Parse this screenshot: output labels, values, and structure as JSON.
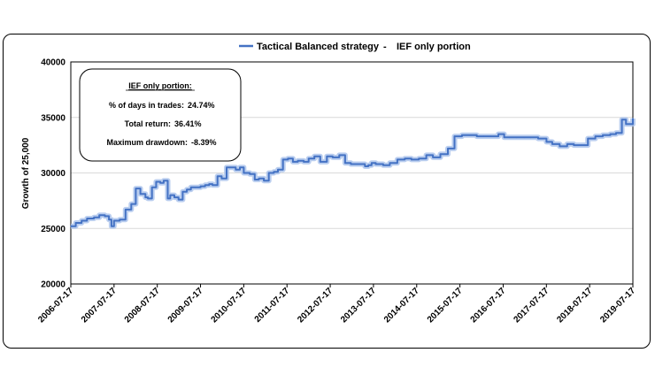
{
  "chart_data": {
    "type": "line",
    "legend": {
      "series_label": "Tactical Balanced strategy",
      "separator": "-",
      "extra_label": "IEF only portion",
      "placement": "top-center"
    },
    "ylabel": "Growth of 25,000",
    "ylim": [
      20000,
      40000
    ],
    "yticks": [
      20000,
      25000,
      30000,
      35000,
      40000
    ],
    "ytick_labels": [
      "20000",
      "25000",
      "30000",
      "35000",
      "40000"
    ],
    "xlim": [
      "2006-07-17",
      "2019-07-17"
    ],
    "xtick_labels": [
      "2006-07-17",
      "2007-07-17",
      "2008-07-17",
      "2009-07-17",
      "2010-07-17",
      "2011-07-17",
      "2012-07-17",
      "2013-07-17",
      "2014-07-17",
      "2015-07-17",
      "2016-07-17",
      "2017-07-17",
      "2018-07-17",
      "2019-07-17"
    ],
    "grid": "horizontal",
    "line_color": "#4472c4",
    "series": [
      {
        "name": "Tactical Balanced strategy",
        "x": [
          "2006-07-17",
          "2006-08-28",
          "2006-10-16",
          "2006-12-01",
          "2007-01-29",
          "2007-03-15",
          "2007-05-01",
          "2007-06-04",
          "2007-06-25",
          "2007-07-17",
          "2007-09-03",
          "2007-10-22",
          "2007-12-10",
          "2008-01-17",
          "2008-02-25",
          "2008-04-07",
          "2008-04-28",
          "2008-06-02",
          "2008-07-07",
          "2008-08-11",
          "2008-09-08",
          "2008-10-13",
          "2008-11-03",
          "2008-12-08",
          "2009-01-12",
          "2009-02-16",
          "2009-03-23",
          "2009-04-27",
          "2009-06-01",
          "2009-07-17",
          "2009-08-24",
          "2009-09-28",
          "2009-10-26",
          "2009-12-07",
          "2010-01-11",
          "2010-02-22",
          "2010-03-29",
          "2010-05-10",
          "2010-06-14",
          "2010-07-17",
          "2010-09-06",
          "2010-10-18",
          "2010-11-22",
          "2011-01-03",
          "2011-02-14",
          "2011-03-28",
          "2011-05-02",
          "2011-06-13",
          "2011-07-25",
          "2011-09-05",
          "2011-10-17",
          "2011-12-05",
          "2012-01-16",
          "2012-03-05",
          "2012-04-23",
          "2012-06-18",
          "2012-08-06",
          "2012-10-01",
          "2012-11-19",
          "2013-01-07",
          "2013-03-04",
          "2013-05-06",
          "2013-06-03",
          "2013-07-01",
          "2013-08-05",
          "2013-10-07",
          "2013-12-02",
          "2014-02-03",
          "2014-04-07",
          "2014-06-02",
          "2014-08-04",
          "2014-10-06",
          "2014-12-01",
          "2015-02-02",
          "2015-04-06",
          "2015-06-01",
          "2015-08-03",
          "2015-10-05",
          "2015-12-07",
          "2016-02-01",
          "2016-04-04",
          "2016-06-06",
          "2016-07-25",
          "2016-09-05",
          "2016-11-07",
          "2017-01-09",
          "2017-03-06",
          "2017-05-08",
          "2017-07-17",
          "2017-09-04",
          "2017-11-06",
          "2018-01-08",
          "2018-03-05",
          "2018-05-07",
          "2018-07-02",
          "2018-09-03",
          "2018-11-05",
          "2019-01-07",
          "2019-02-25",
          "2019-04-15",
          "2019-05-20",
          "2019-06-24",
          "2019-07-17"
        ],
        "y": [
          25200,
          25500,
          25700,
          25900,
          26000,
          26200,
          26100,
          25800,
          25200,
          25700,
          25800,
          26700,
          27200,
          28600,
          28100,
          27800,
          27700,
          28700,
          29200,
          29100,
          29300,
          27700,
          28000,
          27800,
          27600,
          28300,
          28500,
          28700,
          28700,
          28800,
          28900,
          29000,
          28900,
          29700,
          29500,
          30500,
          30500,
          30300,
          30500,
          30000,
          29900,
          29400,
          29500,
          29300,
          30000,
          30100,
          30300,
          31200,
          31300,
          31000,
          31100,
          31000,
          31300,
          31500,
          31000,
          31500,
          31400,
          31600,
          30900,
          30800,
          30800,
          30600,
          30700,
          30900,
          30800,
          30700,
          30900,
          31200,
          31300,
          31200,
          31300,
          31600,
          31400,
          31700,
          32200,
          33300,
          33400,
          33400,
          33300,
          33300,
          33300,
          33500,
          33200,
          33200,
          33200,
          33200,
          33200,
          33100,
          32800,
          32600,
          32400,
          32600,
          32500,
          32500,
          33100,
          33300,
          33400,
          33500,
          33600,
          34800,
          34400,
          34400,
          34900
        ]
      }
    ],
    "stats_box": {
      "title": "IEF only portion:",
      "rows": [
        {
          "label": "% of days in trades:",
          "value": "24.74%"
        },
        {
          "label": "Total return:",
          "value": "36.41%"
        },
        {
          "label": "Maximum drawdown:",
          "value": "-8.39%"
        }
      ]
    }
  }
}
